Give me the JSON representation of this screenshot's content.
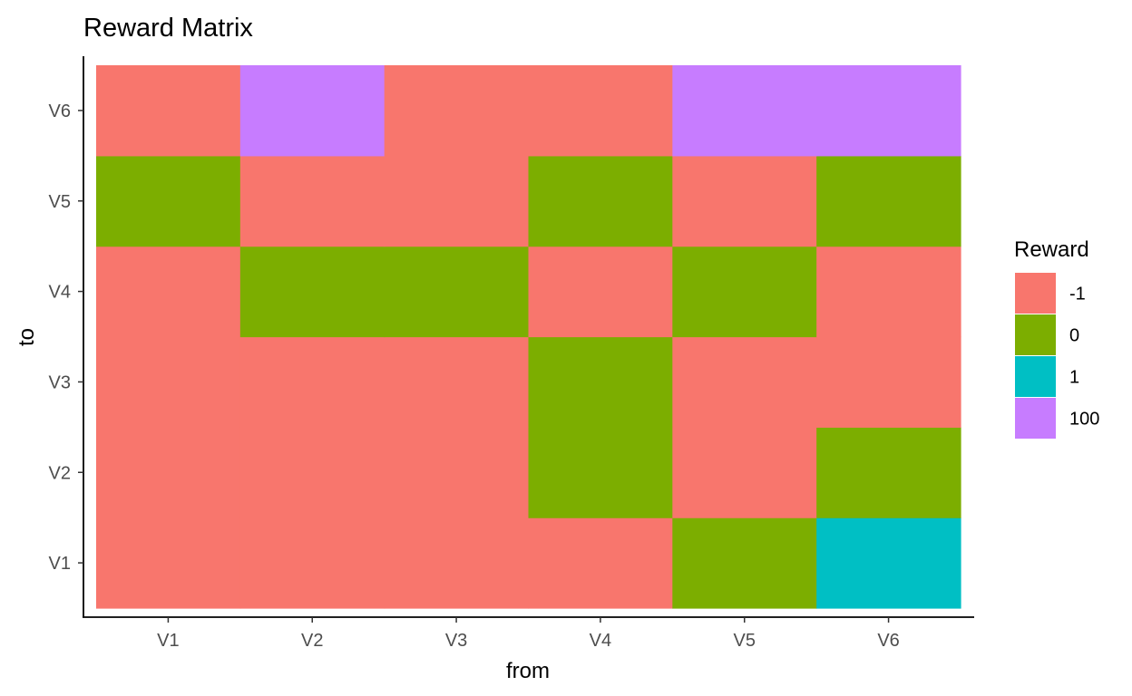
{
  "chart_data": {
    "type": "heatmap",
    "title": "Reward Matrix",
    "xlabel": "from",
    "ylabel": "to",
    "x_categories": [
      "V1",
      "V2",
      "V3",
      "V4",
      "V5",
      "V6"
    ],
    "y_categories": [
      "V1",
      "V2",
      "V3",
      "V4",
      "V5",
      "V6"
    ],
    "cells": [
      {
        "from": "V1",
        "to": "V1",
        "value": "-1"
      },
      {
        "from": "V2",
        "to": "V1",
        "value": "-1"
      },
      {
        "from": "V3",
        "to": "V1",
        "value": "-1"
      },
      {
        "from": "V4",
        "to": "V1",
        "value": "-1"
      },
      {
        "from": "V5",
        "to": "V1",
        "value": "0"
      },
      {
        "from": "V6",
        "to": "V1",
        "value": "1"
      },
      {
        "from": "V1",
        "to": "V2",
        "value": "-1"
      },
      {
        "from": "V2",
        "to": "V2",
        "value": "-1"
      },
      {
        "from": "V3",
        "to": "V2",
        "value": "-1"
      },
      {
        "from": "V4",
        "to": "V2",
        "value": "0"
      },
      {
        "from": "V5",
        "to": "V2",
        "value": "-1"
      },
      {
        "from": "V6",
        "to": "V2",
        "value": "0"
      },
      {
        "from": "V1",
        "to": "V3",
        "value": "-1"
      },
      {
        "from": "V2",
        "to": "V3",
        "value": "-1"
      },
      {
        "from": "V3",
        "to": "V3",
        "value": "-1"
      },
      {
        "from": "V4",
        "to": "V3",
        "value": "0"
      },
      {
        "from": "V5",
        "to": "V3",
        "value": "-1"
      },
      {
        "from": "V6",
        "to": "V3",
        "value": "-1"
      },
      {
        "from": "V1",
        "to": "V4",
        "value": "-1"
      },
      {
        "from": "V2",
        "to": "V4",
        "value": "0"
      },
      {
        "from": "V3",
        "to": "V4",
        "value": "0"
      },
      {
        "from": "V4",
        "to": "V4",
        "value": "-1"
      },
      {
        "from": "V5",
        "to": "V4",
        "value": "0"
      },
      {
        "from": "V6",
        "to": "V4",
        "value": "-1"
      },
      {
        "from": "V1",
        "to": "V5",
        "value": "0"
      },
      {
        "from": "V2",
        "to": "V5",
        "value": "-1"
      },
      {
        "from": "V3",
        "to": "V5",
        "value": "-1"
      },
      {
        "from": "V4",
        "to": "V5",
        "value": "0"
      },
      {
        "from": "V5",
        "to": "V5",
        "value": "-1"
      },
      {
        "from": "V6",
        "to": "V5",
        "value": "0"
      },
      {
        "from": "V1",
        "to": "V6",
        "value": "-1"
      },
      {
        "from": "V2",
        "to": "V6",
        "value": "100"
      },
      {
        "from": "V3",
        "to": "V6",
        "value": "-1"
      },
      {
        "from": "V4",
        "to": "V6",
        "value": "-1"
      },
      {
        "from": "V5",
        "to": "V6",
        "value": "100"
      },
      {
        "from": "V6",
        "to": "V6",
        "value": "100"
      }
    ],
    "legend": {
      "title": "Reward",
      "placement": "right",
      "entries": [
        {
          "label": "-1",
          "color": "#F8766D"
        },
        {
          "label": "0",
          "color": "#7CAE00"
        },
        {
          "label": "1",
          "color": "#00BFC4"
        },
        {
          "label": "100",
          "color": "#C77CFF"
        }
      ]
    },
    "grid": false
  }
}
